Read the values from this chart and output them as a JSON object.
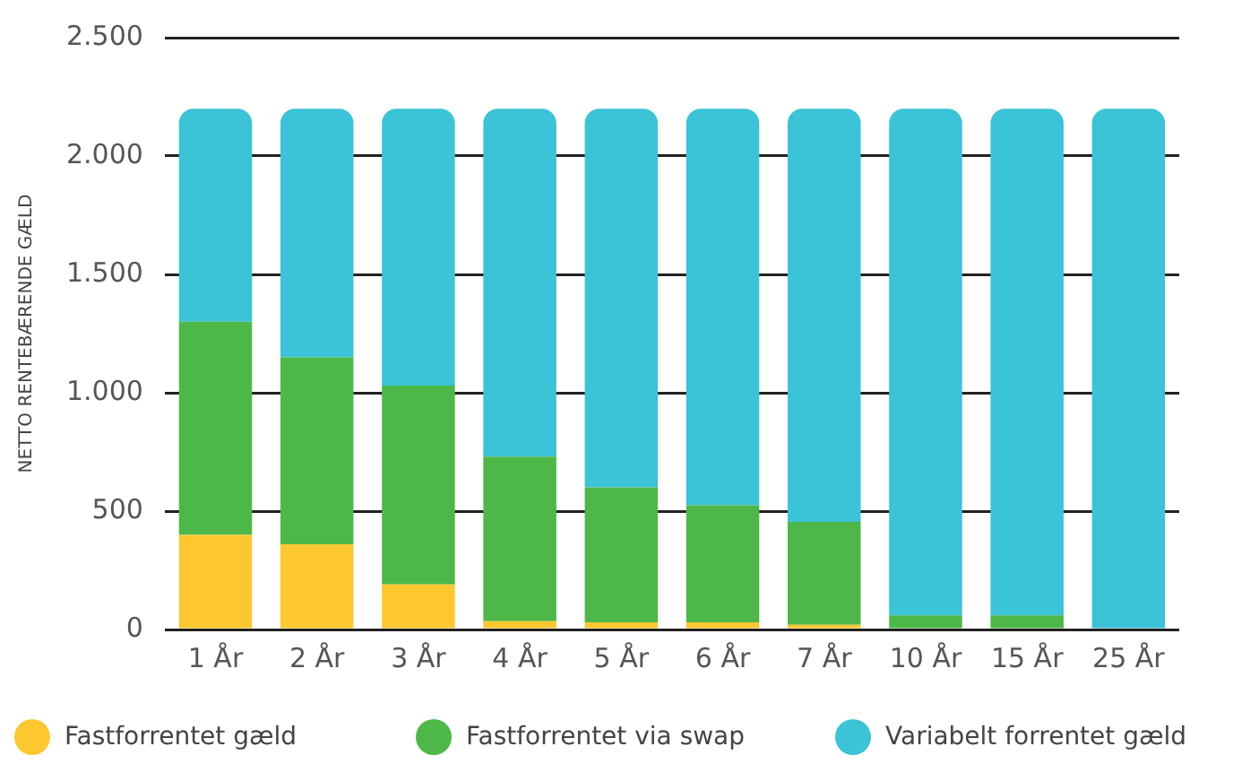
{
  "chart_data": {
    "type": "bar",
    "stacked": true,
    "ylabel": "NETTO RENTEBÆRENDE GÆLD",
    "categories": [
      "1 År",
      "2 År",
      "3 År",
      "4 År",
      "5 År",
      "6 År",
      "7 År",
      "10 År",
      "15 År",
      "25 År"
    ],
    "series": [
      {
        "name": "Fastforrentet gæld",
        "color": "#fdc82f",
        "values": [
          400,
          360,
          190,
          35,
          30,
          30,
          20,
          0,
          0,
          0
        ]
      },
      {
        "name": "Fastforrentet via swap",
        "color": "#4db848",
        "values": [
          900,
          790,
          840,
          695,
          570,
          495,
          435,
          60,
          60,
          0
        ]
      },
      {
        "name": "Variabelt forrentet gæld",
        "color": "#3bc3d7",
        "values": [
          900,
          1050,
          1170,
          1470,
          1600,
          1675,
          1745,
          2140,
          2140,
          2200
        ]
      }
    ],
    "ylim": [
      0,
      2500
    ],
    "yticks": [
      {
        "value": 0,
        "label": "0"
      },
      {
        "value": 500,
        "label": "500"
      },
      {
        "value": 1000,
        "label": "1.000"
      },
      {
        "value": 1500,
        "label": "1.500"
      },
      {
        "value": 2000,
        "label": "2.000"
      },
      {
        "value": 2500,
        "label": "2.500"
      }
    ],
    "grid": "y",
    "legend": "bottom"
  }
}
